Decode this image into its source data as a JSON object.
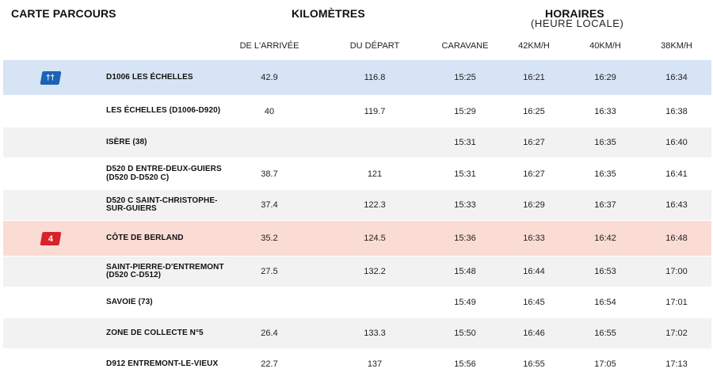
{
  "header": {
    "carte_parcours": "CARTE PARCOURS",
    "kilometres": "KILOMÈTRES",
    "horaires": "HORAIRES",
    "heure_locale": "(HEURE LOCALE)"
  },
  "columns": [
    "DE L'ARRIVÉE",
    "DU DÉPART",
    "CARAVANE",
    "42KM/H",
    "40KM/H",
    "38KM/H"
  ],
  "rows": [
    {
      "place": "D1006 LES ÉCHELLES",
      "arrivee": "42.9",
      "depart": "116.8",
      "caravane": "15:25",
      "s42": "16:21",
      "s40": "16:29",
      "s38": "16:34",
      "style": "feed",
      "icon": "feed-zone-icon"
    },
    {
      "place": "LES ÉCHELLES (D1006-D920)",
      "arrivee": "40",
      "depart": "119.7",
      "caravane": "15:29",
      "s42": "16:25",
      "s40": "16:33",
      "s38": "16:38",
      "style": "even"
    },
    {
      "place": "ISÈRE (38)",
      "arrivee": "",
      "depart": "",
      "caravane": "15:31",
      "s42": "16:27",
      "s40": "16:35",
      "s38": "16:40",
      "style": "odd"
    },
    {
      "place": "D520 D ENTRE-DEUX-GUIERS (D520 D-D520 C)",
      "arrivee": "38.7",
      "depart": "121",
      "caravane": "15:31",
      "s42": "16:27",
      "s40": "16:35",
      "s38": "16:41",
      "style": "even"
    },
    {
      "place": "D520 C SAINT-CHRISTOPHE-SUR-GUIERS",
      "arrivee": "37.4",
      "depart": "122.3",
      "caravane": "15:33",
      "s42": "16:29",
      "s40": "16:37",
      "s38": "16:43",
      "style": "odd"
    },
    {
      "place": "CÔTE DE BERLAND",
      "arrivee": "35.2",
      "depart": "124.5",
      "caravane": "15:36",
      "s42": "16:33",
      "s40": "16:42",
      "s38": "16:48",
      "style": "climb",
      "icon": "climb-category-icon",
      "badge": "4"
    },
    {
      "place": "SAINT-PIERRE-D'ENTREMONT (D520 C-D512)",
      "arrivee": "27.5",
      "depart": "132.2",
      "caravane": "15:48",
      "s42": "16:44",
      "s40": "16:53",
      "s38": "17:00",
      "style": "odd"
    },
    {
      "place": "SAVOIE (73)",
      "arrivee": "",
      "depart": "",
      "caravane": "15:49",
      "s42": "16:45",
      "s40": "16:54",
      "s38": "17:01",
      "style": "even"
    },
    {
      "place": "ZONE DE COLLECTE N°5",
      "arrivee": "26.4",
      "depart": "133.3",
      "caravane": "15:50",
      "s42": "16:46",
      "s40": "16:55",
      "s38": "17:02",
      "style": "odd"
    },
    {
      "place": "D912 ENTREMONT-LE-VIEUX",
      "arrivee": "22.7",
      "depart": "137",
      "caravane": "15:56",
      "s42": "16:55",
      "s40": "17:05",
      "s38": "17:13",
      "style": "even"
    }
  ],
  "colors": {
    "feed": "#d6e4f5",
    "climb": "#fadcd4",
    "badge_blue": "#1a63b5",
    "badge_red": "#d8232a"
  }
}
